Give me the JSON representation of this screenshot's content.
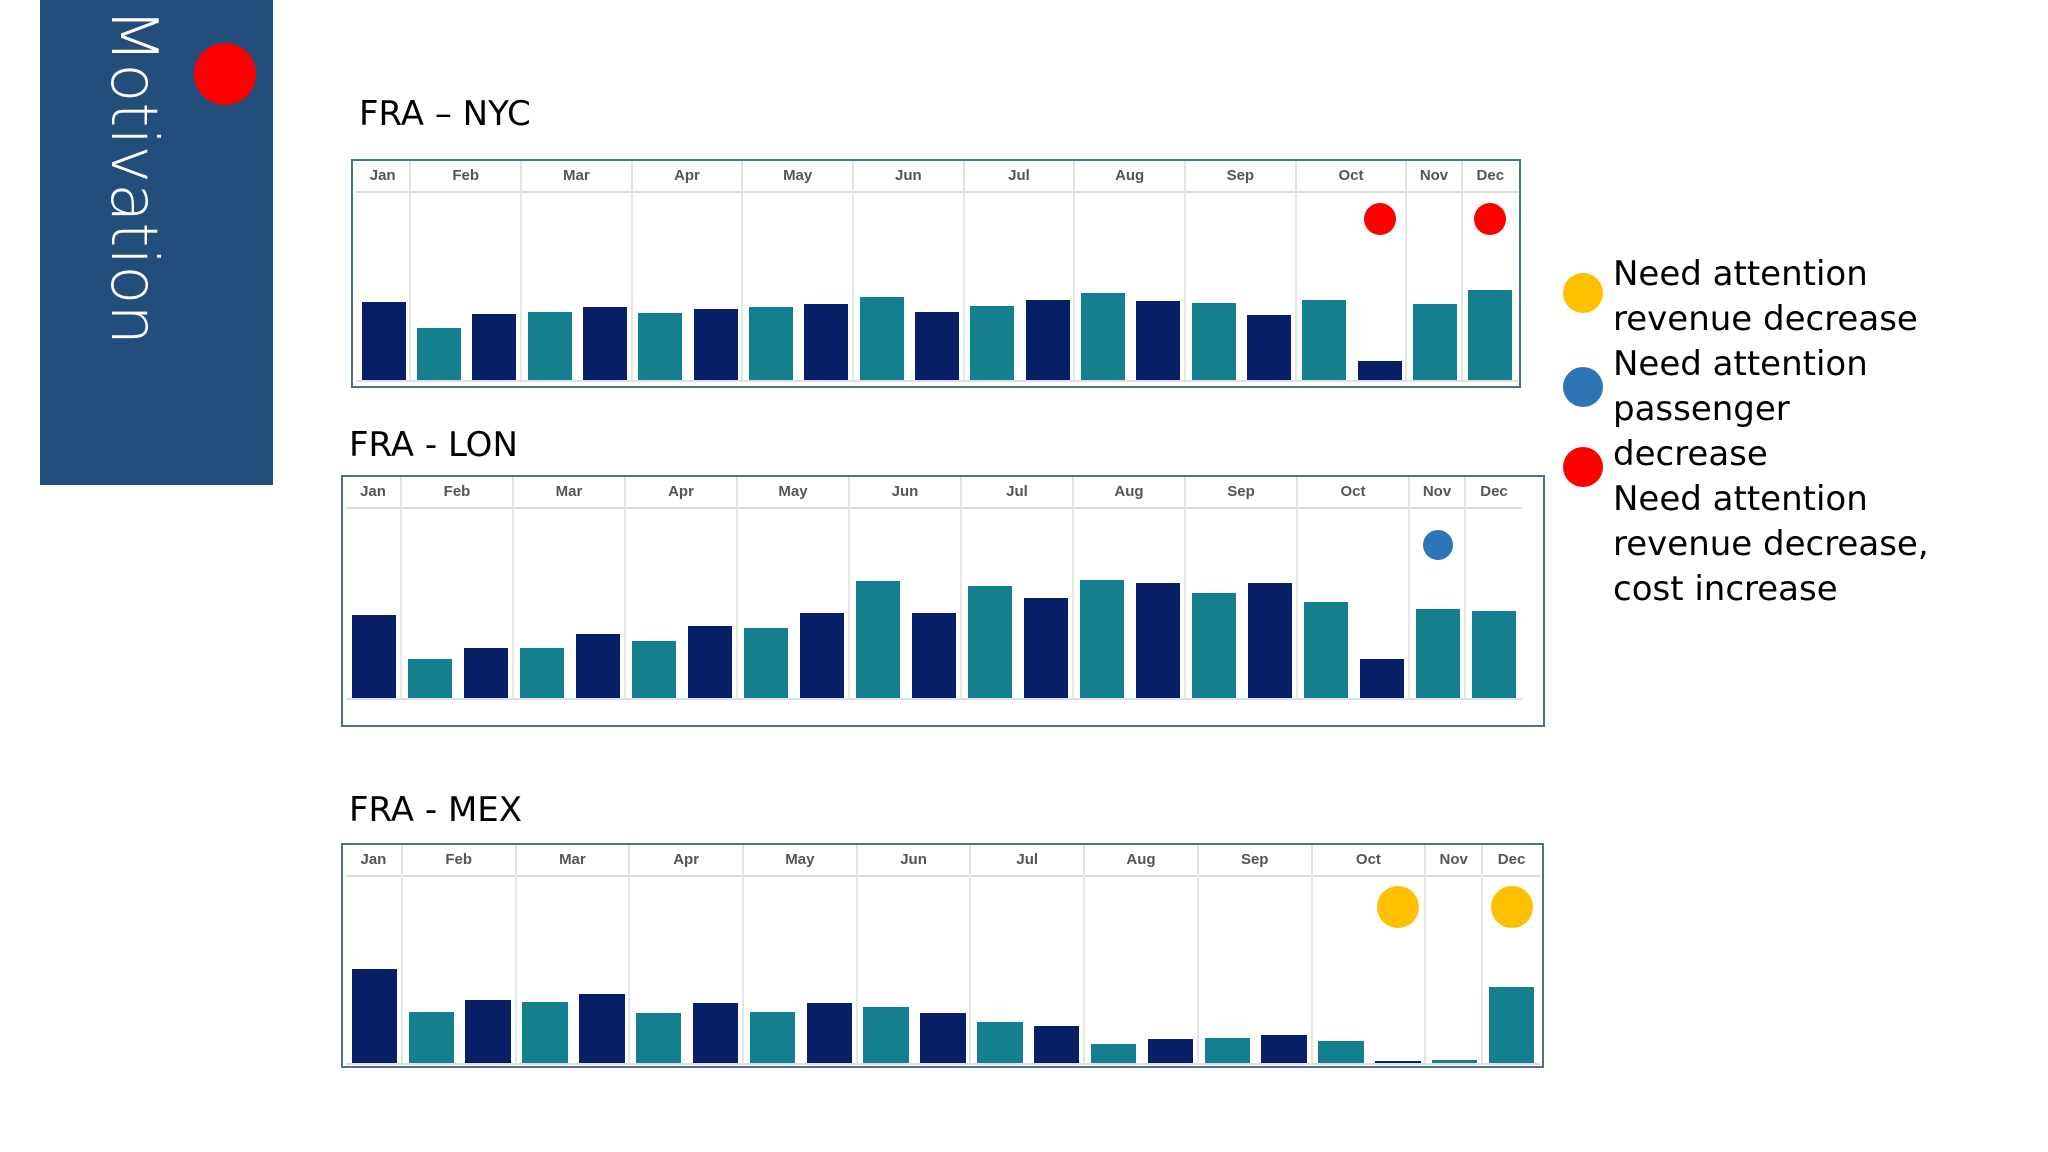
{
  "slide": {
    "section_title": "Motivation",
    "section_marker_color": "#ff0000"
  },
  "colors": {
    "sidebar": "#234e7b",
    "bar_navy": "#061f66",
    "bar_teal": "#14808f",
    "border": "#4d7196",
    "flag_red": "#ff0000",
    "flag_blue": "#2e75b6",
    "flag_yellow": "#ffc000"
  },
  "legend": {
    "items": [
      {
        "color": "#ffc000",
        "name": "yellow-dot"
      },
      {
        "color": "#2e75b6",
        "name": "blue-dot"
      },
      {
        "color": "#ff0000",
        "name": "red-dot"
      }
    ],
    "lines": [
      "Need attention",
      "revenue decrease",
      "Need attention",
      "passenger",
      "decrease",
      "Need attention",
      "revenue decrease,",
      "cost increase"
    ]
  },
  "chart_data": [
    {
      "type": "bar",
      "title": "FRA – NYC",
      "xlabel": "",
      "ylabel": "",
      "grid": false,
      "months": [
        "Jan",
        "Feb",
        "Mar",
        "Apr",
        "May",
        "Jun",
        "Jul",
        "Aug",
        "Sep",
        "Oct",
        "Nov",
        "Dec"
      ],
      "bars_per_month": [
        1,
        2,
        2,
        2,
        2,
        2,
        2,
        2,
        2,
        2,
        1,
        1
      ],
      "values": [
        77,
        51,
        65,
        67,
        72,
        66,
        70,
        72,
        75,
        82,
        67,
        73,
        79,
        86,
        78,
        76,
        64,
        79,
        19,
        75,
        89
      ],
      "colors": [
        "navy",
        "teal",
        "navy",
        "teal",
        "navy",
        "teal",
        "navy",
        "teal",
        "navy",
        "teal",
        "navy",
        "teal",
        "navy",
        "teal",
        "navy",
        "teal",
        "navy",
        "teal",
        "navy",
        "teal",
        "teal"
      ],
      "ylim": [
        0,
        185
      ],
      "flags": [
        {
          "month": "Oct",
          "color": "#ff0000",
          "meaning": "revenue decrease, cost increase"
        },
        {
          "month": "Dec",
          "color": "#ff0000",
          "meaning": "revenue decrease, cost increase"
        }
      ]
    },
    {
      "type": "bar",
      "title": "FRA - LON",
      "xlabel": "",
      "ylabel": "",
      "grid": false,
      "months": [
        "Jan",
        "Feb",
        "Mar",
        "Apr",
        "May",
        "Jun",
        "Jul",
        "Aug",
        "Sep",
        "Oct",
        "Nov",
        "Dec"
      ],
      "bars_per_month": [
        1,
        2,
        2,
        2,
        2,
        2,
        2,
        2,
        2,
        2,
        1,
        1
      ],
      "values": [
        70,
        33,
        42,
        42,
        54,
        48,
        61,
        59,
        72,
        99,
        72,
        95,
        85,
        100,
        97,
        89,
        97,
        81,
        33,
        75,
        74
      ],
      "colors": [
        "navy",
        "teal",
        "navy",
        "teal",
        "navy",
        "teal",
        "navy",
        "teal",
        "navy",
        "teal",
        "navy",
        "teal",
        "navy",
        "teal",
        "navy",
        "teal",
        "navy",
        "teal",
        "navy",
        "teal",
        "teal"
      ],
      "ylim": [
        0,
        160
      ],
      "flags": [
        {
          "month": "Nov",
          "color": "#2e75b6",
          "meaning": "passenger decrease"
        }
      ]
    },
    {
      "type": "bar",
      "title": "FRA - MEX",
      "xlabel": "",
      "ylabel": "",
      "grid": false,
      "months": [
        "Jan",
        "Feb",
        "Mar",
        "Apr",
        "May",
        "Jun",
        "Jul",
        "Aug",
        "Sep",
        "Oct",
        "Nov",
        "Dec"
      ],
      "bars_per_month": [
        1,
        2,
        2,
        2,
        2,
        2,
        2,
        2,
        2,
        2,
        1,
        1
      ],
      "values": [
        94,
        51,
        63,
        61,
        69,
        50,
        60,
        51,
        60,
        56,
        50,
        41,
        37,
        19,
        24,
        25,
        28,
        22,
        2,
        3,
        76
      ],
      "colors": [
        "navy",
        "teal",
        "navy",
        "teal",
        "navy",
        "teal",
        "navy",
        "teal",
        "navy",
        "teal",
        "navy",
        "teal",
        "navy",
        "teal",
        "navy",
        "teal",
        "navy",
        "teal",
        "navy",
        "teal",
        "teal"
      ],
      "ylim": [
        0,
        185
      ],
      "flags": [
        {
          "month": "Oct",
          "color": "#ffc000",
          "meaning": "revenue decrease"
        },
        {
          "month": "Dec",
          "color": "#ffc000",
          "meaning": "revenue decrease"
        }
      ]
    }
  ]
}
